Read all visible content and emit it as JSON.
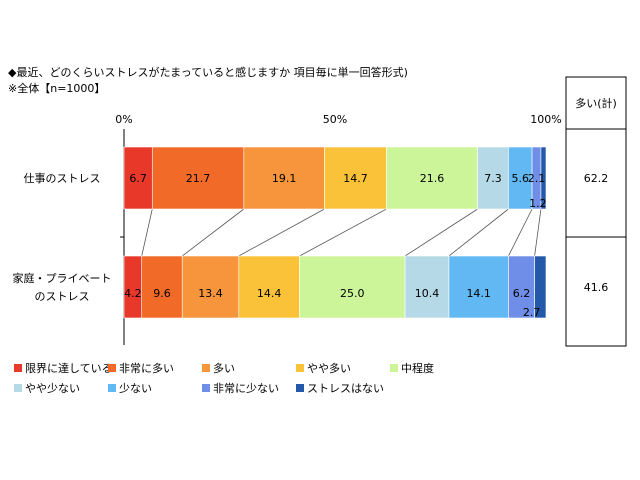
{
  "chart_data": {
    "type": "bar",
    "orientation": "horizontal",
    "stacked": true,
    "title": "◆最近、どのくらいストレスがたまっていると感じますか 項目毎に単一回答形式)",
    "subtitle": "※全体【n=1000】",
    "categories": [
      "仕事のストレス",
      "家庭・プライベートのストレス"
    ],
    "category_lines": [
      [
        "仕事のストレス"
      ],
      [
        "家庭・プライベート",
        "のストレス"
      ]
    ],
    "xlim": [
      0,
      100
    ],
    "x_ticks": [
      "0%",
      "50%",
      "100%"
    ],
    "legend_position": "bottom",
    "series": [
      {
        "name": "限界に達している",
        "values": [
          6.7,
          4.2
        ],
        "labels": [
          "6.7",
          "4.2"
        ],
        "color": "#e8382a"
      },
      {
        "name": "非常に多い",
        "values": [
          21.7,
          9.6
        ],
        "labels": [
          "21.7",
          "9.6"
        ],
        "color": "#f26a27"
      },
      {
        "name": "多い",
        "values": [
          19.1,
          13.4
        ],
        "labels": [
          "19.1",
          "13.4"
        ],
        "color": "#f6953b"
      },
      {
        "name": "やや多い",
        "values": [
          14.7,
          14.4
        ],
        "labels": [
          "14.7",
          "14.4"
        ],
        "color": "#f9c238"
      },
      {
        "name": "中程度",
        "values": [
          21.6,
          25.0
        ],
        "labels": [
          "21.6",
          "25.0"
        ],
        "color": "#ccf59a"
      },
      {
        "name": "やや少ない",
        "values": [
          7.3,
          10.4
        ],
        "labels": [
          "7.3",
          "10.4"
        ],
        "color": "#b5d9e6"
      },
      {
        "name": "少ない",
        "values": [
          5.6,
          14.1
        ],
        "labels": [
          "5.6",
          "14.1"
        ],
        "color": "#62b8f2"
      },
      {
        "name": "非常に少ない",
        "values": [
          2.1,
          6.2
        ],
        "labels": [
          "2.1",
          "6.2"
        ],
        "color": "#6e8ee8"
      },
      {
        "name": "ストレスはない",
        "values": [
          1.2,
          2.7
        ],
        "labels": [
          "1.2",
          "2.7"
        ],
        "color": "#2458a8"
      }
    ],
    "summary_column": {
      "header": "多い(計)",
      "values": [
        "62.2",
        "41.6"
      ]
    }
  }
}
